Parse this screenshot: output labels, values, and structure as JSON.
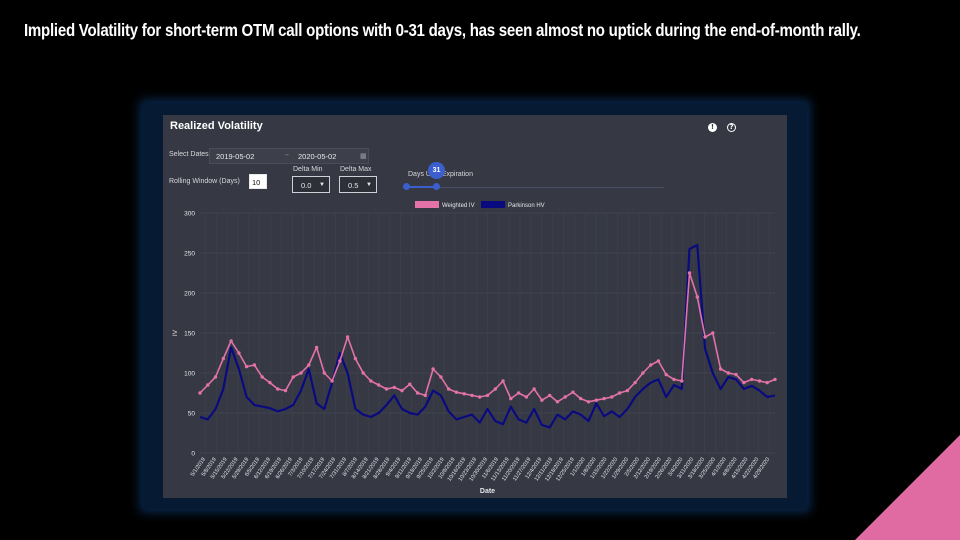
{
  "slide": {
    "title": "Implied Volatility for short-term OTM call options with 0-31 days, has seen almost no uptick during the end-of-month rally."
  },
  "panel": {
    "title": "Realized Volatility",
    "info_icon": "info-icon",
    "help_icon": "help-icon",
    "controls": {
      "select_dates_label": "Select Dates",
      "start_date": "2019-05-02",
      "end_date": "2020-05-02",
      "date_separator": "→",
      "calendar_icon": "calendar-icon",
      "rolling_window_label": "Rolling Window (Days)",
      "rolling_window_value": "10",
      "delta_min_label": "Delta Min",
      "delta_min_value": "0.0",
      "delta_max_label": "Delta Max",
      "delta_max_value": "0.5",
      "days_label": "Days Until Expiration",
      "days_value": "31",
      "days_min": 0,
      "days_max": 365
    }
  },
  "colors": {
    "weighted_iv": "#e272a8",
    "parkinson_hv": "#0a0a80",
    "panel_bg": "#363944",
    "accent": "#3c5fd0",
    "corner": "#e06aa2"
  },
  "chart_data": {
    "type": "line",
    "xlabel": "Date",
    "ylabel": "IV",
    "ylim": [
      0,
      300
    ],
    "yticks": [
      0,
      50,
      100,
      150,
      200,
      250,
      300
    ],
    "grid": true,
    "legend_placement": "top-center",
    "x_tick_labels": [
      "5/1/2019",
      "5/8/2019",
      "5/15/2019",
      "5/22/2019",
      "5/29/2019",
      "6/5/2019",
      "6/12/2019",
      "6/19/2019",
      "6/26/2019",
      "7/3/2019",
      "7/10/2019",
      "7/17/2019",
      "7/24/2019",
      "7/31/2019",
      "8/7/2019",
      "8/14/2019",
      "8/21/2019",
      "8/28/2019",
      "9/4/2019",
      "9/11/2019",
      "9/18/2019",
      "9/25/2019",
      "10/2/2019",
      "10/9/2019",
      "10/16/2019",
      "10/23/2019",
      "10/30/2019",
      "11/6/2019",
      "11/13/2019",
      "11/20/2019",
      "11/27/2019",
      "12/4/2019",
      "12/11/2019",
      "12/18/2019",
      "12/25/2019",
      "1/1/2020",
      "1/8/2020",
      "1/15/2020",
      "1/22/2020",
      "1/29/2020",
      "2/5/2020",
      "2/12/2020",
      "2/19/2020",
      "2/26/2020",
      "3/4/2020",
      "3/11/2020",
      "3/18/2020",
      "3/25/2020",
      "4/1/2020",
      "4/8/2020",
      "4/15/2020",
      "4/22/2020",
      "4/29/2020"
    ],
    "series": [
      {
        "name": "Weighted IV",
        "values": [
          75,
          85,
          95,
          118,
          140,
          125,
          108,
          110,
          95,
          88,
          80,
          78,
          95,
          100,
          110,
          132,
          100,
          90,
          115,
          145,
          118,
          100,
          90,
          85,
          80,
          82,
          78,
          86,
          75,
          72,
          105,
          95,
          80,
          76,
          74,
          72,
          70,
          72,
          80,
          90,
          68,
          75,
          70,
          80,
          66,
          72,
          64,
          70,
          76,
          68,
          64,
          66,
          68,
          70,
          75,
          78,
          88,
          100,
          110,
          115,
          98,
          92,
          90,
          225,
          195,
          145,
          150,
          105,
          100,
          98,
          88,
          92,
          90,
          88,
          92
        ]
      },
      {
        "name": "Parkinson HV",
        "values": [
          45,
          42,
          55,
          80,
          132,
          105,
          70,
          60,
          58,
          56,
          52,
          55,
          60,
          78,
          105,
          62,
          55,
          88,
          125,
          100,
          55,
          48,
          45,
          50,
          60,
          72,
          55,
          50,
          48,
          58,
          78,
          72,
          52,
          42,
          45,
          48,
          38,
          55,
          40,
          36,
          58,
          42,
          38,
          55,
          35,
          32,
          48,
          42,
          52,
          48,
          40,
          62,
          46,
          52,
          45,
          55,
          70,
          80,
          88,
          92,
          70,
          85,
          80,
          255,
          260,
          130,
          100,
          80,
          95,
          92,
          80,
          84,
          78,
          70,
          72
        ]
      }
    ]
  }
}
